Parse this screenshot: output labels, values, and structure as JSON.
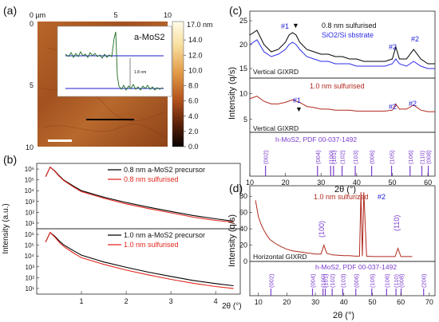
{
  "chart_data": [
    {
      "panel": "(a)",
      "type": "heatmap",
      "title": "a-MoS2",
      "x_ticks": [
        "0 µm",
        "5",
        "10"
      ],
      "y_ticks": [
        "0",
        "5",
        "10"
      ],
      "colorbar": {
        "label_top": "17.0 nm",
        "ticks": [
          "14.0",
          "12.0",
          "10.0",
          "8.0",
          "6.0",
          "4.0",
          "2.0",
          "0.0"
        ]
      },
      "inset": {
        "type": "line",
        "step_label": "1.8 nm"
      }
    },
    {
      "panel": "(b)",
      "type": "line",
      "ylabel": "Intensity (a.u.)",
      "xlabel": "2θ (°)",
      "x_ticks": [
        1,
        2,
        3,
        4
      ],
      "y_ticks": [
        "10^1",
        "10^2",
        "10^3",
        "10^4",
        "10^5",
        "10^6"
      ],
      "subplots": [
        {
          "series": [
            {
              "name": "0.8 nm a-MoS2 precursor",
              "color": "#000000",
              "x": [
                0.2,
                0.3,
                0.4,
                0.5,
                0.6,
                0.8,
                1.0,
                1.5,
                2.0,
                2.5,
                3.0,
                3.5,
                4.0,
                4.4
              ],
              "y": [
                200000,
                1500000,
                700000,
                250000,
                100000,
                30000,
                10000,
                2500,
                800,
                300,
                120,
                50,
                25,
                15
              ]
            },
            {
              "name": "0.8 nm sulfurised",
              "color": "#e1261c",
              "x": [
                0.2,
                0.3,
                0.4,
                0.5,
                0.6,
                0.8,
                1.0,
                1.5,
                2.0,
                2.5,
                3.0,
                3.5,
                4.0,
                4.4
              ],
              "y": [
                200000,
                1500000,
                650000,
                220000,
                90000,
                25000,
                8000,
                2000,
                600,
                220,
                90,
                35,
                18,
                12
              ]
            }
          ]
        },
        {
          "series": [
            {
              "name": "1.0 nm a-MoS2 precursor",
              "color": "#000000",
              "x": [
                0.2,
                0.3,
                0.4,
                0.5,
                0.6,
                0.8,
                1.0,
                1.5,
                2.0,
                2.5,
                3.0,
                3.5,
                4.0,
                4.4
              ],
              "y": [
                200000,
                1500000,
                700000,
                260000,
                110000,
                35000,
                12000,
                2800,
                900,
                320,
                130,
                55,
                28,
                18
              ]
            },
            {
              "name": "1.0 nm sulfurised",
              "color": "#e1261c",
              "x": [
                0.2,
                0.3,
                0.4,
                0.5,
                0.6,
                0.8,
                1.0,
                1.5,
                2.0,
                2.5,
                3.0,
                3.5,
                4.0,
                4.4
              ],
              "y": [
                200000,
                1500000,
                600000,
                200000,
                80000,
                22000,
                7000,
                1700,
                500,
                180,
                70,
                30,
                15,
                10
              ]
            }
          ]
        }
      ]
    },
    {
      "panel": "(c)",
      "type": "line",
      "ylabel": "Intensity (q/s)",
      "xlabel": "2θ (°)",
      "x_ticks": [
        10,
        20,
        30,
        40,
        50,
        60
      ],
      "y_ticks": [
        5,
        10,
        15,
        20,
        25
      ],
      "top_labels": {
        "legend": [
          "0.8 nm sulfurised",
          "SiO2/Si sbstrate"
        ],
        "mode": "Vertical GIXRD",
        "peaks": [
          "#1",
          "#2",
          "#2"
        ]
      },
      "middle_labels": {
        "legend": "1.0 nm sulfurised",
        "mode": "Vertical GIXRD",
        "peaks": [
          "#1",
          "#2",
          "#2"
        ]
      },
      "reference": {
        "label": "h-MoS2, PDF 00-037-1492",
        "peaks": [
          {
            "hkl": "(002)",
            "two_theta": 14.4
          },
          {
            "hkl": "(004)",
            "two_theta": 29.0
          },
          {
            "hkl": "(100)",
            "two_theta": 32.7
          },
          {
            "hkl": "(101)",
            "two_theta": 33.5
          },
          {
            "hkl": "(102)",
            "two_theta": 35.9
          },
          {
            "hkl": "(103)",
            "two_theta": 39.6
          },
          {
            "hkl": "(006)",
            "two_theta": 44.2
          },
          {
            "hkl": "(105)",
            "two_theta": 49.8
          },
          {
            "hkl": "(106)",
            "two_theta": 55.0
          },
          {
            "hkl": "(110)",
            "two_theta": 58.3
          },
          {
            "hkl": "(008)",
            "two_theta": 60.1
          }
        ]
      },
      "series": [
        {
          "name": "0.8 nm sulfurised",
          "color": "#000000",
          "x": [
            10,
            12,
            14,
            16,
            18,
            20,
            21,
            22,
            23,
            24,
            26,
            28,
            30,
            32,
            34,
            36,
            38,
            40,
            42,
            44,
            46,
            48,
            50,
            51,
            52,
            54,
            56,
            58,
            60,
            62
          ],
          "y": [
            22,
            23,
            20,
            18.5,
            19,
            20.5,
            22,
            22.5,
            22,
            20.5,
            19,
            18.5,
            18,
            18,
            17.5,
            17.5,
            17,
            17,
            16.5,
            16.5,
            16.5,
            16.5,
            17,
            19.5,
            17,
            17,
            19,
            17,
            16,
            16
          ]
        },
        {
          "name": "SiO2/Si sbstrate",
          "color": "#2d2de6",
          "x": [
            10,
            12,
            14,
            16,
            18,
            20,
            21,
            22,
            23,
            24,
            26,
            28,
            30,
            32,
            34,
            36,
            38,
            40,
            42,
            44,
            46,
            48,
            50,
            51,
            52,
            54,
            56,
            58,
            60,
            62
          ],
          "y": [
            20,
            21,
            18.5,
            17.5,
            18,
            19,
            20,
            20.5,
            20,
            19,
            17.5,
            17,
            16.5,
            16.5,
            16,
            16,
            16,
            15.5,
            15.5,
            15.5,
            15.5,
            15.5,
            16,
            17,
            16,
            15.5,
            16.5,
            15.5,
            15,
            15
          ]
        },
        {
          "name": "1.0 nm sulfurised",
          "color": "#b0281e",
          "x": [
            10,
            12,
            14,
            16,
            18,
            20,
            22,
            24,
            26,
            28,
            30,
            32,
            34,
            36,
            38,
            40,
            42,
            44,
            46,
            48,
            50,
            51,
            52,
            54,
            56,
            58,
            60,
            62
          ],
          "y": [
            9,
            9.5,
            8.5,
            8,
            8,
            8.3,
            8.8,
            8.3,
            7.5,
            7.3,
            7,
            7,
            6.8,
            6.8,
            6.8,
            6.6,
            6.6,
            6.6,
            6.6,
            6.6,
            6.8,
            8,
            7,
            7,
            7.8,
            6.8,
            6.5,
            6.5
          ]
        }
      ]
    },
    {
      "panel": "(d)",
      "type": "line",
      "ylabel": "Intensity (q/s)",
      "xlabel": "2θ (°)",
      "x_ticks": [
        10,
        20,
        30,
        40,
        50,
        60,
        70
      ],
      "y_ticks": [
        0,
        20,
        40,
        60,
        80
      ],
      "labels": {
        "legend": "1.0 nm sulfurized",
        "mode": "Horizontal GIXRD",
        "peaks": [
          "#2",
          "(100)",
          "(110)"
        ]
      },
      "reference": {
        "label": "h-MoS2, PDF 00-037-1492",
        "peaks": [
          {
            "hkl": "(002)",
            "two_theta": 14.4
          },
          {
            "hkl": "(004)",
            "two_theta": 29.0
          },
          {
            "hkl": "(100)",
            "two_theta": 32.7
          },
          {
            "hkl": "(101)",
            "two_theta": 33.5
          },
          {
            "hkl": "(102)",
            "two_theta": 35.9
          },
          {
            "hkl": "(103)",
            "two_theta": 39.6
          },
          {
            "hkl": "(006)",
            "two_theta": 44.2
          },
          {
            "hkl": "(105)",
            "two_theta": 49.8
          },
          {
            "hkl": "(106)",
            "two_theta": 55.0
          },
          {
            "hkl": "(110)",
            "two_theta": 58.3
          },
          {
            "hkl": "(008)",
            "two_theta": 60.1
          },
          {
            "hkl": "(200)",
            "two_theta": 68.0
          }
        ]
      },
      "series": [
        {
          "name": "1.0 nm sulfurized",
          "color": "#b0281e",
          "x": [
            9,
            10,
            11,
            12,
            13,
            14,
            16,
            18,
            20,
            22,
            24,
            26,
            28,
            30,
            32,
            33,
            34,
            36,
            38,
            40,
            42,
            44,
            45.5,
            46,
            46.5,
            47,
            48,
            50,
            52,
            54,
            56,
            58,
            59,
            60,
            62,
            64
          ],
          "y": [
            75,
            55,
            45,
            38,
            32,
            27,
            22,
            18,
            15,
            13,
            12,
            11,
            10,
            9,
            9,
            20,
            10,
            8,
            7.5,
            7,
            7,
            6.5,
            6.5,
            85,
            6.5,
            85,
            6.5,
            6,
            6,
            6,
            6,
            6,
            16,
            6,
            6,
            6
          ]
        }
      ]
    }
  ]
}
